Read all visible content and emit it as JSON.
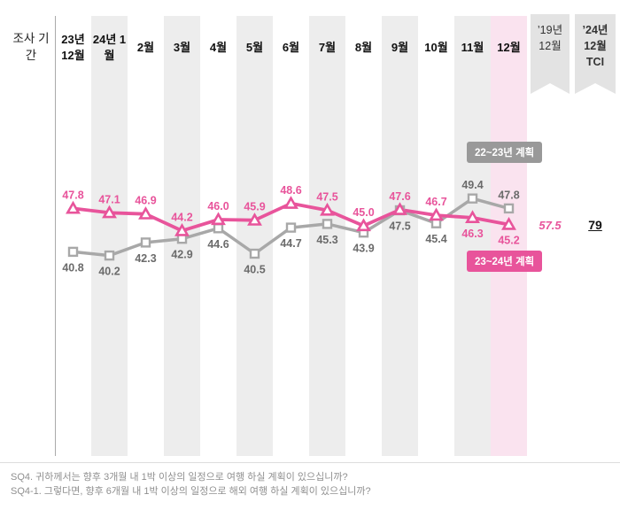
{
  "header": {
    "period_label": "조사 기간",
    "columns": [
      "23년 12월",
      "24년 1월",
      "2월",
      "3월",
      "4월",
      "5월",
      "6월",
      "7월",
      "8월",
      "9월",
      "10월",
      "11월",
      "12월"
    ],
    "ribbon_columns": [
      "’19년 12월",
      "’24년 12월 TCI"
    ]
  },
  "chart_data": {
    "type": "line",
    "title": "",
    "xlabel": "",
    "ylabel": "",
    "categories": [
      "23년 12월",
      "24년 1월",
      "2월",
      "3월",
      "4월",
      "5월",
      "6월",
      "7월",
      "8월",
      "9월",
      "10월",
      "11월",
      "12월"
    ],
    "series": [
      {
        "name": "22~23년 계획",
        "marker": "square",
        "values": [
          40.8,
          40.2,
          42.3,
          42.9,
          44.6,
          40.5,
          44.7,
          45.3,
          43.9,
          47.5,
          45.4,
          49.4,
          47.8
        ]
      },
      {
        "name": "23~24년 계획",
        "marker": "triangle",
        "values": [
          47.8,
          47.1,
          46.9,
          44.2,
          46.0,
          45.9,
          48.6,
          47.5,
          45.0,
          47.6,
          46.7,
          46.3,
          45.2
        ]
      }
    ],
    "ylim": [
      38,
      52
    ],
    "grid": false,
    "legend_position": "right",
    "ref_dec_2019": "57.5",
    "tci_dec_2024": "79",
    "highlighted_category": "12월"
  },
  "colors": {
    "pink": "#e8549b",
    "gray_line": "#a8a8a8",
    "gray_label": "#6b6b6b",
    "legend_gray_bg": "#999999",
    "stripe_gray": "#ededed",
    "stripe_pink": "#fae3ef"
  },
  "footer": {
    "line1": "SQ4. 귀하께서는 향후 3개월 내 1박 이상의 일정으로 여행 하실 계획이 있으십니까?",
    "line2": "SQ4-1. 그렇다면, 향후 6개월 내 1박 이상의 일정으로 해외 여행 하실 계획이 있으십니까?"
  }
}
